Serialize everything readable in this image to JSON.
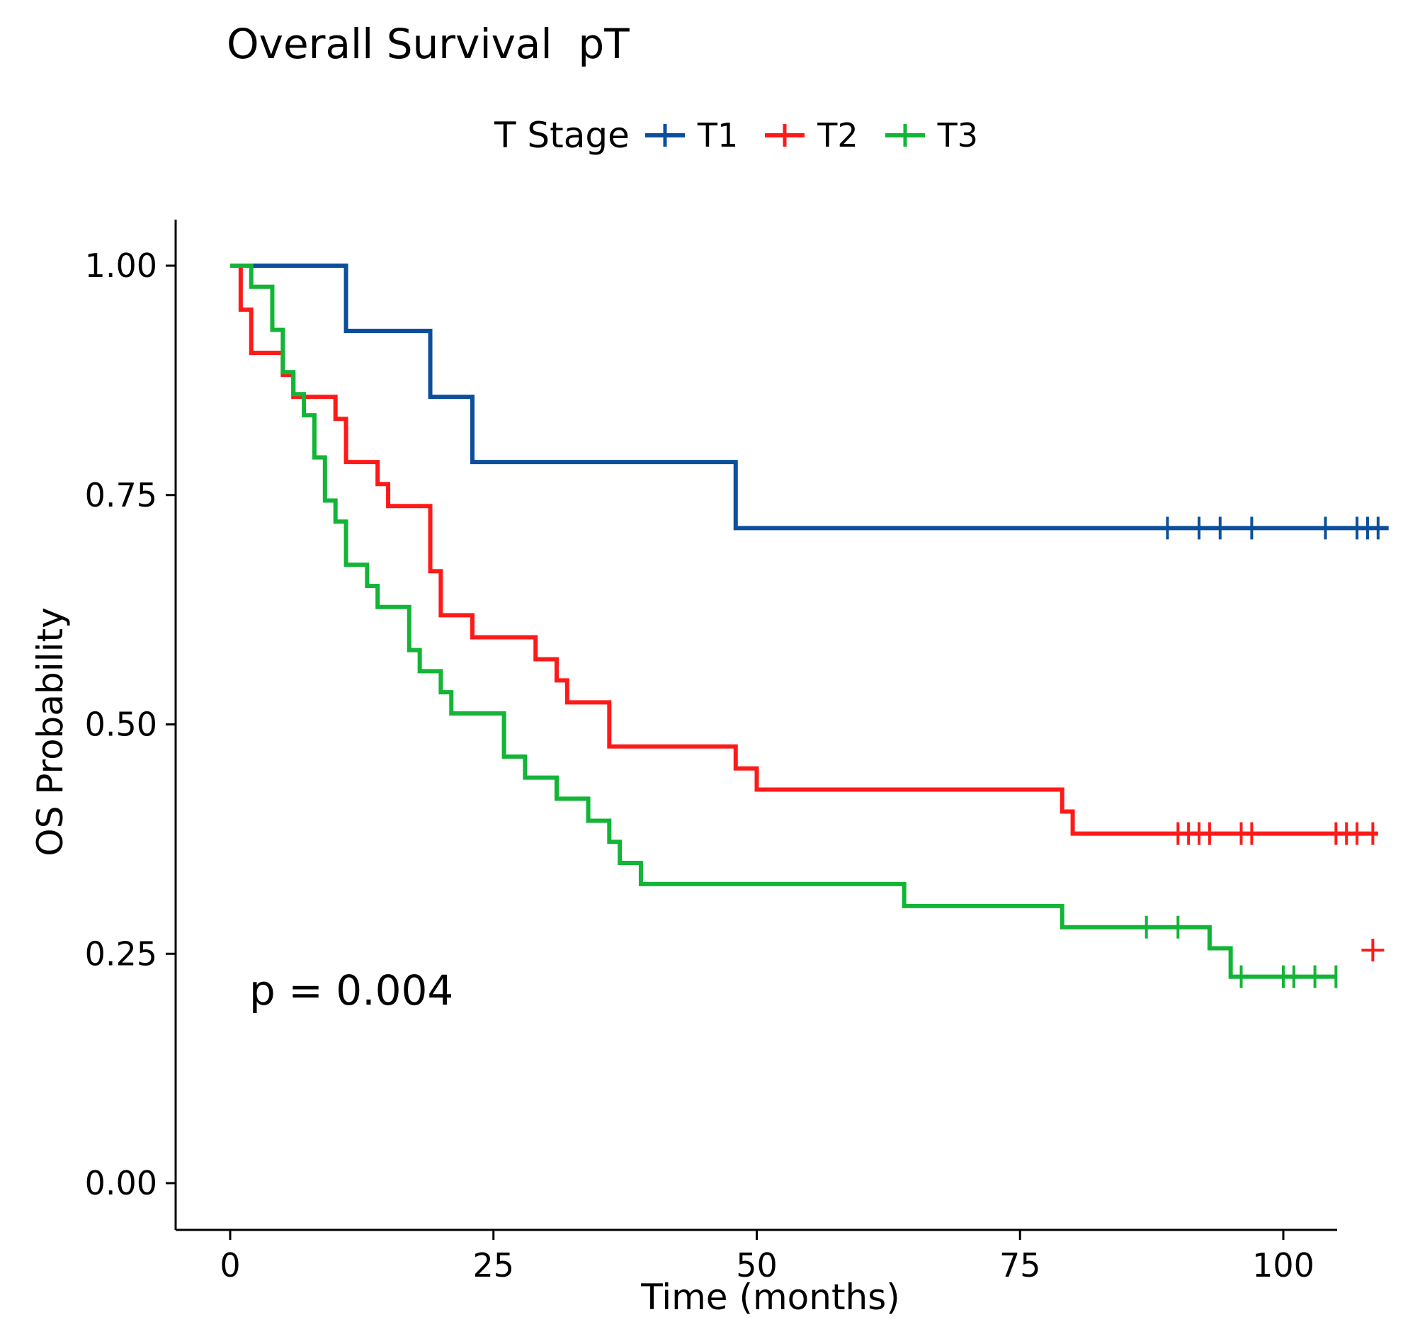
{
  "chart_data": {
    "type": "line",
    "subtype": "kaplan-meier",
    "title": "Overall Survival  pT",
    "xlabel": "Time (months)",
    "ylabel": "OS Probability",
    "xlim": [
      -5,
      105
    ],
    "ylim": [
      -0.05,
      1.05
    ],
    "x_ticks": [
      0,
      25,
      50,
      75,
      100
    ],
    "x_tick_labels": [
      "0",
      "25",
      "50",
      "75",
      "100"
    ],
    "y_ticks": [
      0,
      0.25,
      0.5,
      0.75,
      1.0
    ],
    "y_tick_labels": [
      "0.00",
      "0.25",
      "0.50",
      "0.75",
      "1.00"
    ],
    "grid": false,
    "legend": {
      "title": "T Stage",
      "position": "top"
    },
    "annotation": "p = 0.004",
    "series": [
      {
        "name": "T1",
        "color": "#0b4f9c",
        "steps": [
          [
            0,
            1.0
          ],
          [
            11,
            0.929
          ],
          [
            19,
            0.857
          ],
          [
            23,
            0.786
          ],
          [
            48,
            0.714
          ]
        ],
        "end": 110,
        "censors": [
          89,
          92,
          94,
          97,
          104,
          107,
          108,
          109
        ]
      },
      {
        "name": "T2",
        "color": "#ff1a1a",
        "steps": [
          [
            0,
            1.0
          ],
          [
            1,
            0.952
          ],
          [
            2,
            0.905
          ],
          [
            5,
            0.881
          ],
          [
            6,
            0.857
          ],
          [
            10,
            0.833
          ],
          [
            11,
            0.786
          ],
          [
            14,
            0.762
          ],
          [
            15,
            0.738
          ],
          [
            19,
            0.667
          ],
          [
            20,
            0.619
          ],
          [
            23,
            0.595
          ],
          [
            29,
            0.571
          ],
          [
            31,
            0.548
          ],
          [
            32,
            0.524
          ],
          [
            36,
            0.476
          ],
          [
            48,
            0.452
          ],
          [
            50,
            0.429
          ],
          [
            79,
            0.405
          ],
          [
            80,
            0.381
          ]
        ],
        "end": 109,
        "censors": [
          90,
          91,
          92,
          93,
          96,
          97,
          105,
          106,
          107,
          108.5
        ],
        "extra_censors": [
          [
            108.5,
            0.254
          ]
        ]
      },
      {
        "name": "T3",
        "color": "#12b536",
        "steps": [
          [
            0,
            1.0
          ],
          [
            2,
            0.977
          ],
          [
            4,
            0.93
          ],
          [
            5,
            0.884
          ],
          [
            6,
            0.86
          ],
          [
            7,
            0.837
          ],
          [
            8,
            0.791
          ],
          [
            9,
            0.744
          ],
          [
            10,
            0.721
          ],
          [
            11,
            0.674
          ],
          [
            13,
            0.651
          ],
          [
            14,
            0.628
          ],
          [
            17,
            0.581
          ],
          [
            18,
            0.558
          ],
          [
            20,
            0.535
          ],
          [
            21,
            0.512
          ],
          [
            26,
            0.465
          ],
          [
            28,
            0.442
          ],
          [
            31,
            0.419
          ],
          [
            34,
            0.395
          ],
          [
            36,
            0.372
          ],
          [
            37,
            0.349
          ],
          [
            39,
            0.326
          ],
          [
            64,
            0.302
          ],
          [
            79,
            0.279
          ],
          [
            93,
            0.256
          ],
          [
            95,
            0.225
          ]
        ],
        "end": 105,
        "censors": [
          87,
          90,
          96,
          100,
          101,
          103,
          105
        ]
      }
    ]
  }
}
